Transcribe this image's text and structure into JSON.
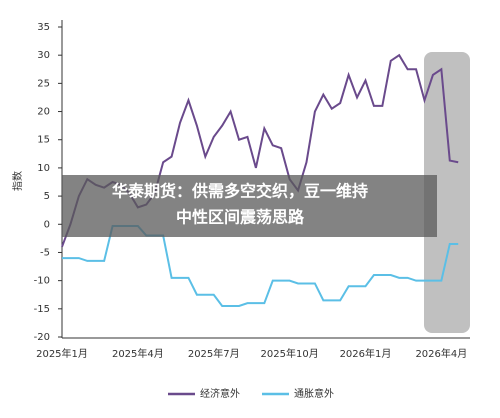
{
  "chart_data": {
    "type": "line",
    "y_label": "指数",
    "categories": [
      "2025年1月",
      null,
      null,
      null,
      null,
      null,
      null,
      null,
      null,
      "2025年4月",
      null,
      null,
      null,
      null,
      null,
      null,
      null,
      null,
      "2025年7月",
      null,
      null,
      null,
      null,
      null,
      null,
      null,
      null,
      "2025年10月",
      null,
      null,
      null,
      null,
      null,
      null,
      null,
      null,
      "2026年1月",
      null,
      null,
      null,
      null,
      null,
      null,
      null,
      null,
      "2026年4月",
      null,
      null
    ],
    "series": [
      {
        "name": "经济意外",
        "color": "#6a4a8c",
        "values": [
          -4,
          0,
          5,
          8,
          7,
          6.5,
          7.5,
          7,
          5.5,
          3,
          3.5,
          5.5,
          11,
          12,
          18,
          22,
          17.5,
          12,
          15.5,
          17.5,
          20,
          15,
          15.5,
          10,
          17,
          14,
          13.5,
          8,
          6,
          11,
          20,
          23,
          20.5,
          21.5,
          26.5,
          22.5,
          25.5,
          21,
          21,
          29,
          30,
          27.5,
          27.5,
          22,
          26.5,
          27.5,
          11.3,
          11
        ]
      },
      {
        "name": "通胀意外",
        "color": "#5bbfe6",
        "values": [
          -6,
          -6,
          -6,
          -6.5,
          -6.5,
          -6.5,
          -0.3,
          -0.3,
          -0.3,
          -0.3,
          -2,
          -2,
          -2,
          -9.5,
          -9.5,
          -9.5,
          -12.5,
          -12.5,
          -12.5,
          -14.5,
          -14.5,
          -14.5,
          -14,
          -14,
          -14,
          -10,
          -10,
          -10,
          -10.5,
          -10.5,
          -10.5,
          -13.5,
          -13.5,
          -13.5,
          -11,
          -11,
          -11,
          -9,
          -9,
          -9,
          -9.5,
          -9.5,
          -10,
          -10,
          -10,
          -10,
          -3.5,
          -3.5
        ]
      }
    ],
    "ylim": [
      -20,
      35
    ],
    "yticks": [
      -20,
      -15,
      -10,
      -5,
      0,
      5,
      10,
      15,
      20,
      25,
      30,
      35
    ],
    "grid": false
  },
  "overlay_title": {
    "lines": [
      "华泰期货：供需多空交织，豆一维持",
      "中性区间震荡思路"
    ]
  }
}
